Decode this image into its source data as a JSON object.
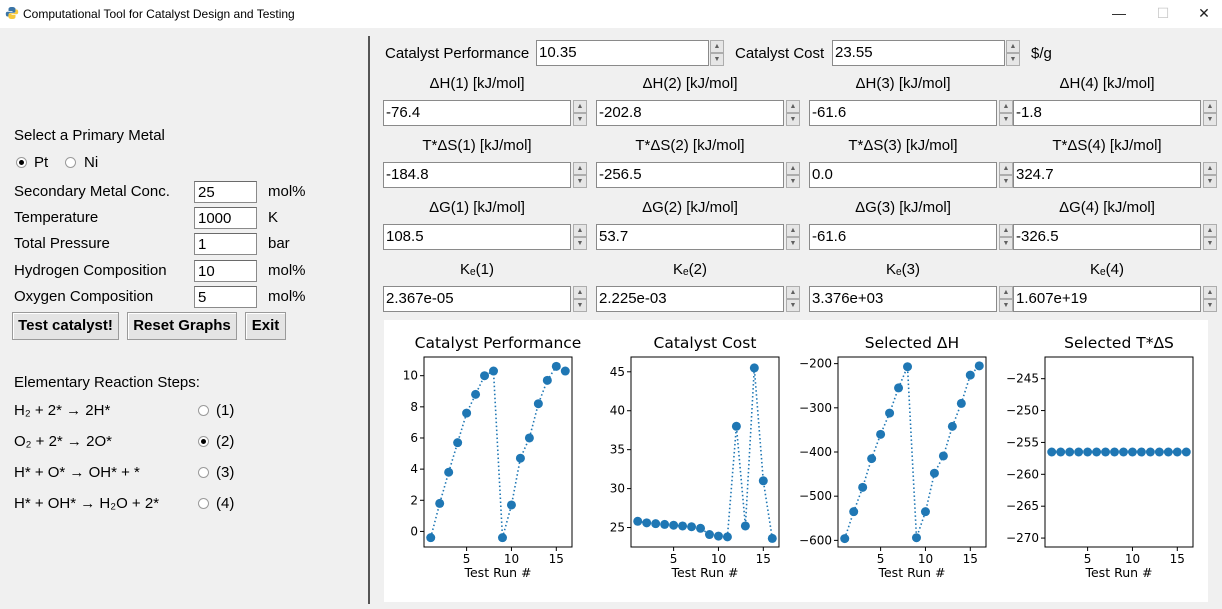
{
  "window": {
    "title": "Computational Tool for Catalyst Design and Testing",
    "minimize_glyph": "—",
    "maximize_glyph": "☐",
    "close_glyph": "✕"
  },
  "left_panel": {
    "primary_metal_label": "Select a Primary Metal",
    "metal_options": [
      {
        "label": "Pt",
        "selected": true
      },
      {
        "label": "Ni",
        "selected": false
      }
    ],
    "params": [
      {
        "label": "Secondary Metal Conc.",
        "value": "25",
        "unit": "mol%"
      },
      {
        "label": "Temperature",
        "value": "1000",
        "unit": "K"
      },
      {
        "label": "Total Pressure",
        "value": "1",
        "unit": "bar"
      },
      {
        "label": "Hydrogen Composition",
        "value": "10",
        "unit": "mol%"
      },
      {
        "label": "Oxygen Composition",
        "value": "5",
        "unit": "mol%"
      }
    ],
    "buttons": {
      "test": "Test catalyst!",
      "reset": "Reset Graphs",
      "exit": "Exit"
    },
    "steps_label": "Elementary Reaction Steps:",
    "steps": [
      {
        "equation": "H₂ + 2* → 2H*",
        "option": "(1)",
        "selected": false
      },
      {
        "equation": "O₂ + 2* → 2O*",
        "option": "(2)",
        "selected": true
      },
      {
        "equation": "H* + O* → OH* + *",
        "option": "(3)",
        "selected": false
      },
      {
        "equation": "H* + OH* → H₂O + 2*",
        "option": "(4)",
        "selected": false
      }
    ]
  },
  "right_panel": {
    "performance_label": "Catalyst Performance",
    "performance_value": "10.35",
    "cost_label": "Catalyst Cost",
    "cost_value": "23.55",
    "cost_unit": "$/g",
    "rows": [
      {
        "headers": [
          "ΔH(1) [kJ/mol]",
          "ΔH(2) [kJ/mol]",
          "ΔH(3) [kJ/mol]",
          "ΔH(4) [kJ/mol]"
        ],
        "values": [
          "-76.4",
          "-202.8",
          "-61.6",
          "-1.8"
        ]
      },
      {
        "headers": [
          "T*ΔS(1) [kJ/mol]",
          "T*ΔS(2) [kJ/mol]",
          "T*ΔS(3) [kJ/mol]",
          "T*ΔS(4) [kJ/mol]"
        ],
        "values": [
          "-184.8",
          "-256.5",
          "0.0",
          "324.7"
        ]
      },
      {
        "headers": [
          "ΔG(1) [kJ/mol]",
          "ΔG(2) [kJ/mol]",
          "ΔG(3) [kJ/mol]",
          "ΔG(4) [kJ/mol]"
        ],
        "values": [
          "108.5",
          "53.7",
          "-61.6",
          "-326.5"
        ]
      },
      {
        "headers": [
          "Kₑ(1)",
          "Kₑ(2)",
          "Kₑ(3)",
          "Kₑ(4)"
        ],
        "values": [
          "2.367e-05",
          "2.225e-03",
          "3.376e+03",
          "1.607e+19"
        ]
      }
    ]
  },
  "chart_data": [
    {
      "type": "line",
      "title": "Catalyst Performance",
      "xlabel": "Test Run #",
      "x": [
        1,
        2,
        3,
        4,
        5,
        6,
        7,
        8,
        9,
        10,
        11,
        12,
        13,
        14,
        15,
        16
      ],
      "y": [
        -0.4,
        1.8,
        3.8,
        5.7,
        7.6,
        8.8,
        10.0,
        10.3,
        -0.4,
        1.7,
        4.7,
        6.0,
        8.2,
        9.7,
        10.6,
        10.3
      ],
      "xlim": [
        0.25,
        16.75
      ],
      "ylim": [
        -1.0,
        11.2
      ],
      "xticks": [
        5,
        10,
        15
      ],
      "yticks": [
        0,
        2,
        4,
        6,
        8,
        10
      ],
      "style": "dotted line with circle markers",
      "color": "#1f77b4"
    },
    {
      "type": "line",
      "title": "Catalyst Cost",
      "xlabel": "Test Run #",
      "x": [
        1,
        2,
        3,
        4,
        5,
        6,
        7,
        8,
        9,
        10,
        11,
        12,
        13,
        14,
        15,
        16
      ],
      "y": [
        25.8,
        25.6,
        25.5,
        25.4,
        25.3,
        25.2,
        25.1,
        24.9,
        24.1,
        23.9,
        23.8,
        38.0,
        25.2,
        45.5,
        31.0,
        23.6
      ],
      "xlim": [
        0.25,
        16.75
      ],
      "ylim": [
        22.5,
        46.9
      ],
      "xticks": [
        5,
        10,
        15
      ],
      "yticks": [
        25,
        30,
        35,
        40,
        45
      ],
      "style": "dotted line with circle markers",
      "color": "#1f77b4"
    },
    {
      "type": "line",
      "title": "Selected ΔH",
      "xlabel": "Test Run #",
      "x": [
        1,
        2,
        3,
        4,
        5,
        6,
        7,
        8,
        9,
        10,
        11,
        12,
        13,
        14,
        15,
        16
      ],
      "y": [
        -596,
        -535,
        -480,
        -415,
        -360,
        -312,
        -255,
        -207,
        -594,
        -535,
        -448,
        -409,
        -342,
        -290,
        -226,
        -205
      ],
      "xlim": [
        0.25,
        16.75
      ],
      "ylim": [
        -615,
        -185
      ],
      "xticks": [
        5,
        10,
        15
      ],
      "yticks": [
        -600,
        -500,
        -400,
        -300,
        -200
      ],
      "style": "dotted line with circle markers",
      "color": "#1f77b4"
    },
    {
      "type": "line",
      "title": "Selected T*ΔS",
      "xlabel": "Test Run #",
      "x": [
        1,
        2,
        3,
        4,
        5,
        6,
        7,
        8,
        9,
        10,
        11,
        12,
        13,
        14,
        15,
        16
      ],
      "y": [
        -256.5,
        -256.5,
        -256.5,
        -256.5,
        -256.5,
        -256.5,
        -256.5,
        -256.5,
        -256.5,
        -256.5,
        -256.5,
        -256.5,
        -256.5,
        -256.5,
        -256.5,
        -256.5
      ],
      "xlim": [
        0.25,
        16.75
      ],
      "ylim": [
        -271.4,
        -241.6
      ],
      "xticks": [
        5,
        10,
        15
      ],
      "yticks": [
        -270,
        -265,
        -260,
        -255,
        -250,
        -245
      ],
      "style": "dotted line with circle markers",
      "color": "#1f77b4"
    }
  ]
}
